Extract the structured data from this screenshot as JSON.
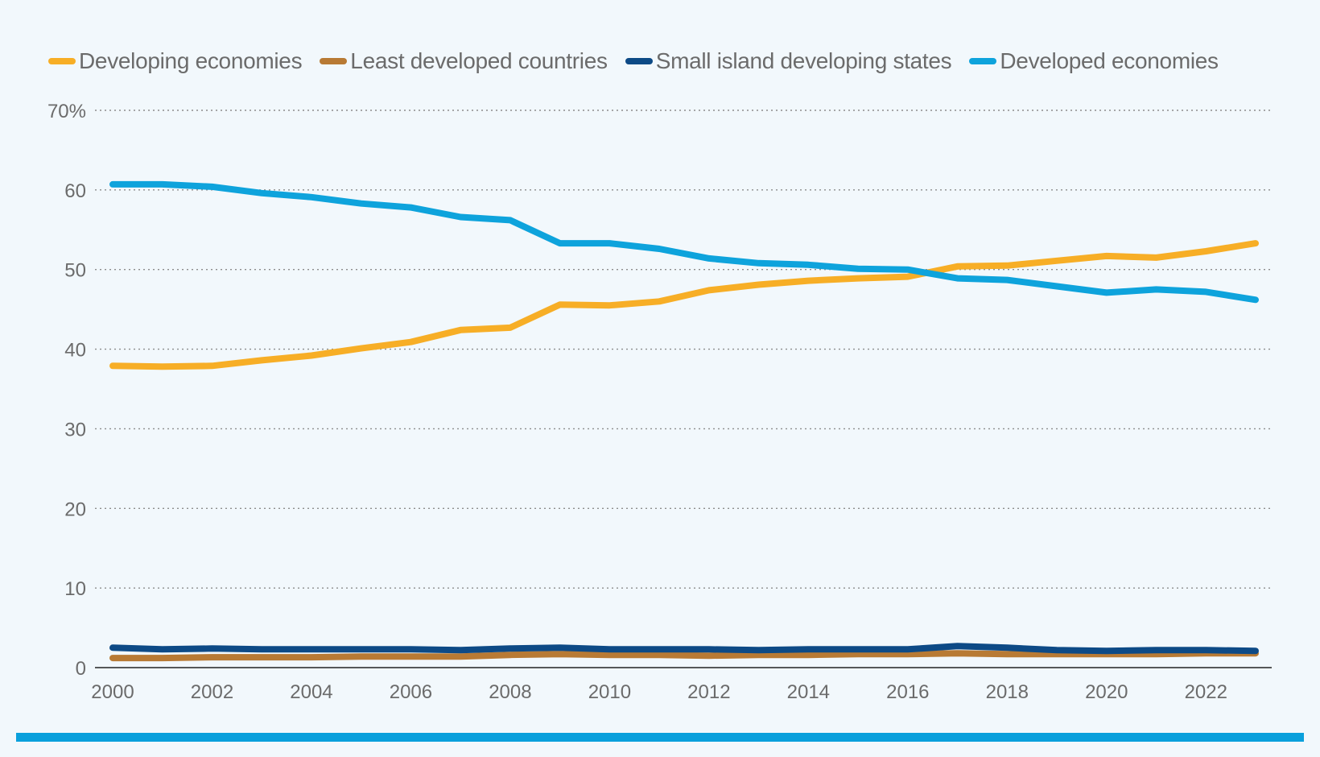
{
  "chart_data": {
    "type": "line",
    "title": "",
    "xlabel": "",
    "ylabel": "",
    "ylim": [
      0,
      70
    ],
    "y_ticks": [
      0,
      10,
      20,
      30,
      40,
      50,
      60,
      70
    ],
    "y_tick_labels": [
      "0",
      "10",
      "20",
      "30",
      "40",
      "50",
      "60",
      "70%"
    ],
    "x": [
      2000,
      2001,
      2002,
      2003,
      2004,
      2005,
      2006,
      2007,
      2008,
      2009,
      2010,
      2011,
      2012,
      2013,
      2014,
      2015,
      2016,
      2017,
      2018,
      2019,
      2020,
      2021,
      2022,
      2023
    ],
    "x_tick_labels": [
      "2000",
      "2002",
      "2004",
      "2006",
      "2008",
      "2010",
      "2012",
      "2014",
      "2016",
      "2018",
      "2020",
      "2022"
    ],
    "grid": "horizontal-dotted",
    "legend_position": "top-left",
    "series": [
      {
        "name": "Developing economies",
        "color": "#f7ae26",
        "values": [
          37.9,
          37.8,
          37.9,
          38.6,
          39.2,
          40.1,
          40.9,
          42.4,
          42.7,
          45.6,
          45.5,
          46.0,
          47.4,
          48.1,
          48.6,
          48.9,
          49.1,
          50.4,
          50.5,
          51.1,
          51.7,
          51.5,
          52.3,
          53.3
        ]
      },
      {
        "name": "Least developed countries",
        "color": "#b87a34",
        "values": [
          1.2,
          1.2,
          1.3,
          1.3,
          1.3,
          1.4,
          1.4,
          1.4,
          1.6,
          1.7,
          1.6,
          1.6,
          1.5,
          1.6,
          1.6,
          1.7,
          1.7,
          1.8,
          1.7,
          1.7,
          1.7,
          1.7,
          1.8,
          1.8
        ]
      },
      {
        "name": "Small island developing states",
        "color": "#0d4a86",
        "values": [
          2.5,
          2.3,
          2.4,
          2.3,
          2.3,
          2.3,
          2.3,
          2.2,
          2.4,
          2.5,
          2.3,
          2.3,
          2.3,
          2.2,
          2.3,
          2.3,
          2.3,
          2.7,
          2.5,
          2.2,
          2.1,
          2.2,
          2.2,
          2.1
        ]
      },
      {
        "name": "Developed economies",
        "color": "#0ea3dc",
        "values": [
          60.7,
          60.7,
          60.4,
          59.6,
          59.1,
          58.3,
          57.8,
          56.6,
          56.2,
          53.3,
          53.3,
          52.6,
          51.4,
          50.8,
          50.6,
          50.1,
          50.0,
          48.9,
          48.7,
          47.9,
          47.1,
          47.5,
          47.2,
          46.2
        ]
      }
    ]
  },
  "accent_bar_color": "#0aa0dc"
}
